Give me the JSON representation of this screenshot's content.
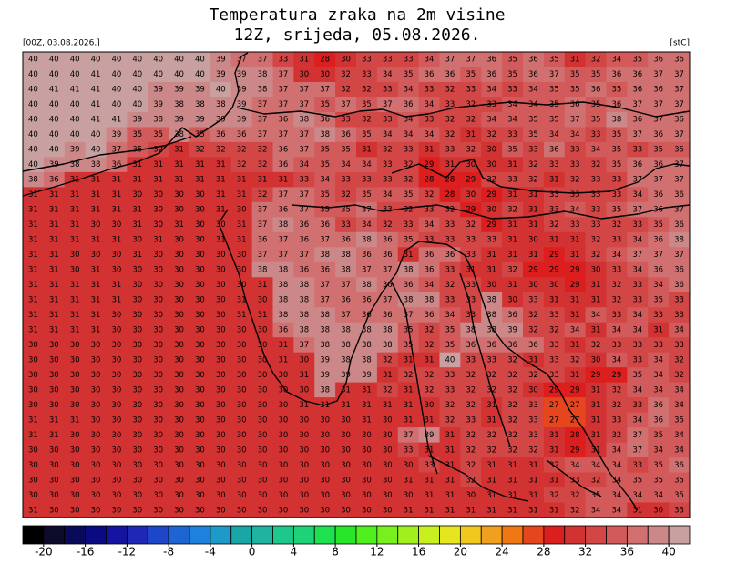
{
  "header": {
    "title_line1": "Temperatura zraka na 2m visine",
    "title_line2": "12Z, srijeda, 05.08.2026.",
    "run": "[00Z, 03.08.2026.]",
    "unit": "[stC]"
  },
  "map": {
    "rows": [
      [
        40,
        40,
        40,
        40,
        40,
        40,
        40,
        40,
        40,
        39,
        37,
        37,
        33,
        31,
        28,
        30,
        33,
        33,
        33,
        34,
        37,
        37,
        36,
        35,
        36,
        35,
        31,
        32,
        34,
        35,
        36,
        36
      ],
      [
        40,
        40,
        40,
        41,
        40,
        40,
        40,
        40,
        40,
        39,
        39,
        38,
        37,
        30,
        30,
        32,
        33,
        34,
        35,
        36,
        36,
        35,
        36,
        35,
        36,
        37,
        35,
        35,
        36,
        36,
        37,
        37
      ],
      [
        40,
        41,
        41,
        41,
        40,
        40,
        39,
        39,
        39,
        40,
        39,
        38,
        37,
        37,
        37,
        32,
        32,
        33,
        34,
        33,
        32,
        33,
        34,
        33,
        34,
        35,
        35,
        36,
        35,
        36,
        36,
        37
      ],
      [
        40,
        40,
        40,
        41,
        40,
        40,
        39,
        38,
        38,
        38,
        39,
        37,
        37,
        37,
        35,
        37,
        35,
        37,
        36,
        34,
        33,
        32,
        33,
        34,
        34,
        35,
        36,
        35,
        36,
        37,
        37,
        37
      ],
      [
        40,
        40,
        40,
        41,
        41,
        39,
        38,
        39,
        39,
        39,
        39,
        37,
        36,
        38,
        36,
        33,
        32,
        33,
        34,
        33,
        32,
        32,
        34,
        34,
        35,
        35,
        37,
        35,
        38,
        36,
        37,
        36
      ],
      [
        40,
        40,
        40,
        40,
        39,
        35,
        35,
        38,
        35,
        36,
        36,
        37,
        37,
        37,
        38,
        36,
        35,
        34,
        34,
        34,
        32,
        31,
        32,
        33,
        35,
        34,
        34,
        33,
        35,
        37,
        36,
        37
      ],
      [
        40,
        40,
        39,
        40,
        37,
        35,
        32,
        31,
        32,
        32,
        32,
        32,
        36,
        37,
        35,
        35,
        31,
        32,
        33,
        31,
        33,
        32,
        30,
        35,
        33,
        36,
        33,
        34,
        35,
        33,
        35,
        35
      ],
      [
        40,
        39,
        38,
        38,
        36,
        31,
        31,
        31,
        31,
        31,
        32,
        32,
        36,
        34,
        35,
        34,
        34,
        33,
        32,
        29,
        31,
        30,
        30,
        31,
        32,
        33,
        33,
        32,
        35,
        36,
        36,
        37
      ],
      [
        38,
        36,
        31,
        31,
        31,
        31,
        31,
        31,
        31,
        31,
        31,
        31,
        31,
        33,
        34,
        33,
        33,
        33,
        32,
        28,
        28,
        29,
        32,
        33,
        32,
        31,
        32,
        33,
        33,
        37,
        37,
        37
      ],
      [
        31,
        31,
        31,
        31,
        31,
        30,
        30,
        30,
        30,
        31,
        31,
        32,
        37,
        37,
        35,
        32,
        35,
        34,
        35,
        32,
        28,
        30,
        29,
        31,
        31,
        33,
        33,
        33,
        33,
        34,
        36,
        36
      ],
      [
        31,
        31,
        31,
        31,
        31,
        31,
        30,
        30,
        30,
        31,
        30,
        37,
        36,
        37,
        35,
        35,
        37,
        33,
        32,
        33,
        32,
        29,
        30,
        32,
        31,
        33,
        34,
        33,
        35,
        37,
        36,
        37
      ],
      [
        31,
        31,
        31,
        30,
        30,
        31,
        30,
        31,
        30,
        30,
        31,
        37,
        38,
        36,
        36,
        33,
        34,
        32,
        33,
        34,
        33,
        32,
        29,
        31,
        31,
        32,
        33,
        33,
        32,
        33,
        35,
        36
      ],
      [
        31,
        31,
        31,
        31,
        31,
        30,
        31,
        30,
        30,
        31,
        31,
        36,
        37,
        36,
        37,
        36,
        38,
        36,
        35,
        33,
        33,
        33,
        33,
        31,
        30,
        31,
        31,
        32,
        33,
        34,
        36,
        38
      ],
      [
        31,
        31,
        30,
        30,
        30,
        31,
        30,
        30,
        30,
        30,
        30,
        37,
        37,
        37,
        38,
        38,
        36,
        36,
        31,
        36,
        36,
        33,
        31,
        31,
        31,
        29,
        31,
        32,
        34,
        37,
        37,
        37
      ],
      [
        31,
        31,
        30,
        31,
        30,
        30,
        30,
        30,
        30,
        30,
        30,
        38,
        38,
        36,
        36,
        38,
        37,
        37,
        38,
        36,
        33,
        31,
        31,
        32,
        29,
        29,
        29,
        30,
        33,
        34,
        36,
        36
      ],
      [
        31,
        31,
        31,
        31,
        31,
        30,
        30,
        30,
        30,
        30,
        30,
        31,
        38,
        38,
        37,
        37,
        38,
        36,
        36,
        34,
        32,
        33,
        30,
        31,
        30,
        30,
        29,
        31,
        32,
        33,
        34,
        36
      ],
      [
        31,
        31,
        31,
        31,
        31,
        30,
        30,
        30,
        30,
        30,
        31,
        30,
        38,
        38,
        37,
        36,
        36,
        37,
        38,
        38,
        33,
        33,
        38,
        30,
        33,
        31,
        31,
        31,
        32,
        33,
        35,
        33
      ],
      [
        31,
        31,
        31,
        31,
        30,
        30,
        30,
        30,
        30,
        30,
        31,
        31,
        38,
        38,
        38,
        37,
        36,
        36,
        37,
        36,
        34,
        33,
        38,
        36,
        32,
        33,
        31,
        34,
        33,
        34,
        33,
        33
      ],
      [
        31,
        31,
        31,
        31,
        30,
        30,
        30,
        30,
        30,
        30,
        30,
        30,
        36,
        38,
        38,
        38,
        38,
        38,
        35,
        32,
        35,
        38,
        38,
        39,
        32,
        32,
        34,
        31,
        34,
        34,
        31,
        34
      ],
      [
        30,
        30,
        30,
        30,
        30,
        30,
        30,
        30,
        30,
        30,
        30,
        30,
        31,
        37,
        38,
        38,
        38,
        38,
        35,
        32,
        35,
        36,
        36,
        36,
        36,
        33,
        31,
        32,
        33,
        33,
        33,
        33
      ],
      [
        30,
        30,
        30,
        30,
        30,
        30,
        30,
        30,
        30,
        30,
        30,
        30,
        31,
        30,
        39,
        38,
        38,
        32,
        31,
        31,
        40,
        33,
        33,
        32,
        31,
        33,
        32,
        30,
        34,
        33,
        34,
        32
      ],
      [
        30,
        30,
        30,
        30,
        30,
        30,
        30,
        30,
        30,
        30,
        30,
        30,
        30,
        31,
        39,
        39,
        39,
        31,
        32,
        32,
        33,
        32,
        32,
        32,
        32,
        33,
        31,
        29,
        29,
        35,
        34,
        32
      ],
      [
        30,
        30,
        30,
        30,
        30,
        30,
        30,
        30,
        30,
        30,
        30,
        30,
        30,
        30,
        38,
        31,
        31,
        32,
        31,
        32,
        33,
        32,
        32,
        32,
        30,
        29,
        29,
        31,
        32,
        34,
        34,
        34
      ],
      [
        30,
        30,
        30,
        30,
        30,
        30,
        30,
        30,
        30,
        30,
        30,
        30,
        30,
        31,
        31,
        31,
        31,
        31,
        31,
        30,
        32,
        32,
        31,
        32,
        33,
        27,
        27,
        31,
        32,
        33,
        36,
        34
      ],
      [
        31,
        31,
        31,
        30,
        30,
        30,
        30,
        30,
        30,
        30,
        30,
        30,
        30,
        30,
        30,
        30,
        31,
        30,
        31,
        31,
        32,
        33,
        31,
        32,
        33,
        27,
        27,
        31,
        33,
        34,
        36,
        35
      ],
      [
        31,
        31,
        30,
        30,
        30,
        30,
        30,
        30,
        30,
        30,
        30,
        30,
        30,
        30,
        30,
        30,
        30,
        30,
        37,
        39,
        31,
        32,
        32,
        32,
        33,
        31,
        28,
        31,
        32,
        37,
        35,
        34
      ],
      [
        30,
        30,
        30,
        30,
        30,
        30,
        30,
        30,
        30,
        30,
        30,
        30,
        30,
        30,
        30,
        30,
        30,
        30,
        33,
        31,
        31,
        32,
        32,
        32,
        32,
        31,
        29,
        31,
        34,
        37,
        34,
        34
      ],
      [
        30,
        30,
        30,
        30,
        30,
        30,
        30,
        30,
        30,
        30,
        30,
        30,
        30,
        30,
        30,
        30,
        30,
        30,
        30,
        33,
        31,
        32,
        31,
        31,
        31,
        32,
        34,
        34,
        34,
        33,
        35,
        36
      ],
      [
        30,
        30,
        30,
        30,
        30,
        30,
        30,
        30,
        30,
        30,
        30,
        30,
        30,
        30,
        30,
        30,
        30,
        30,
        31,
        31,
        31,
        32,
        31,
        31,
        31,
        31,
        33,
        32,
        34,
        35,
        35,
        35
      ],
      [
        30,
        30,
        30,
        30,
        30,
        30,
        30,
        30,
        30,
        30,
        30,
        30,
        30,
        30,
        30,
        30,
        30,
        30,
        30,
        31,
        31,
        30,
        31,
        31,
        31,
        32,
        32,
        35,
        34,
        34,
        34,
        35
      ],
      [
        31,
        30,
        30,
        30,
        30,
        30,
        30,
        30,
        30,
        30,
        30,
        30,
        30,
        30,
        30,
        30,
        30,
        30,
        31,
        31,
        31,
        31,
        31,
        31,
        31,
        31,
        32,
        34,
        34,
        31,
        30,
        33
      ]
    ]
  },
  "colorbar": {
    "range": [
      -22,
      42
    ],
    "ticks": [
      -20,
      -16,
      -12,
      -8,
      -4,
      0,
      4,
      8,
      12,
      16,
      20,
      24,
      28,
      32,
      36,
      40
    ],
    "colors": [
      "#000000",
      "#0c0c2a",
      "#0a0a5a",
      "#0a0a82",
      "#1414a0",
      "#1e28b4",
      "#1e46c8",
      "#1e64d2",
      "#1e82dc",
      "#1e9ac8",
      "#1aa6a6",
      "#1eb4a0",
      "#1ec88c",
      "#1ed278",
      "#1ee050",
      "#28e628",
      "#50f01e",
      "#78f01e",
      "#a0f01e",
      "#c8f01e",
      "#e6e61e",
      "#f0c81e",
      "#f0a01e",
      "#f07814",
      "#e6461e",
      "#dc1e1e",
      "#d23232",
      "#d24646",
      "#d25a5a",
      "#d07070",
      "#cc8888",
      "#c8a0a0"
    ]
  }
}
